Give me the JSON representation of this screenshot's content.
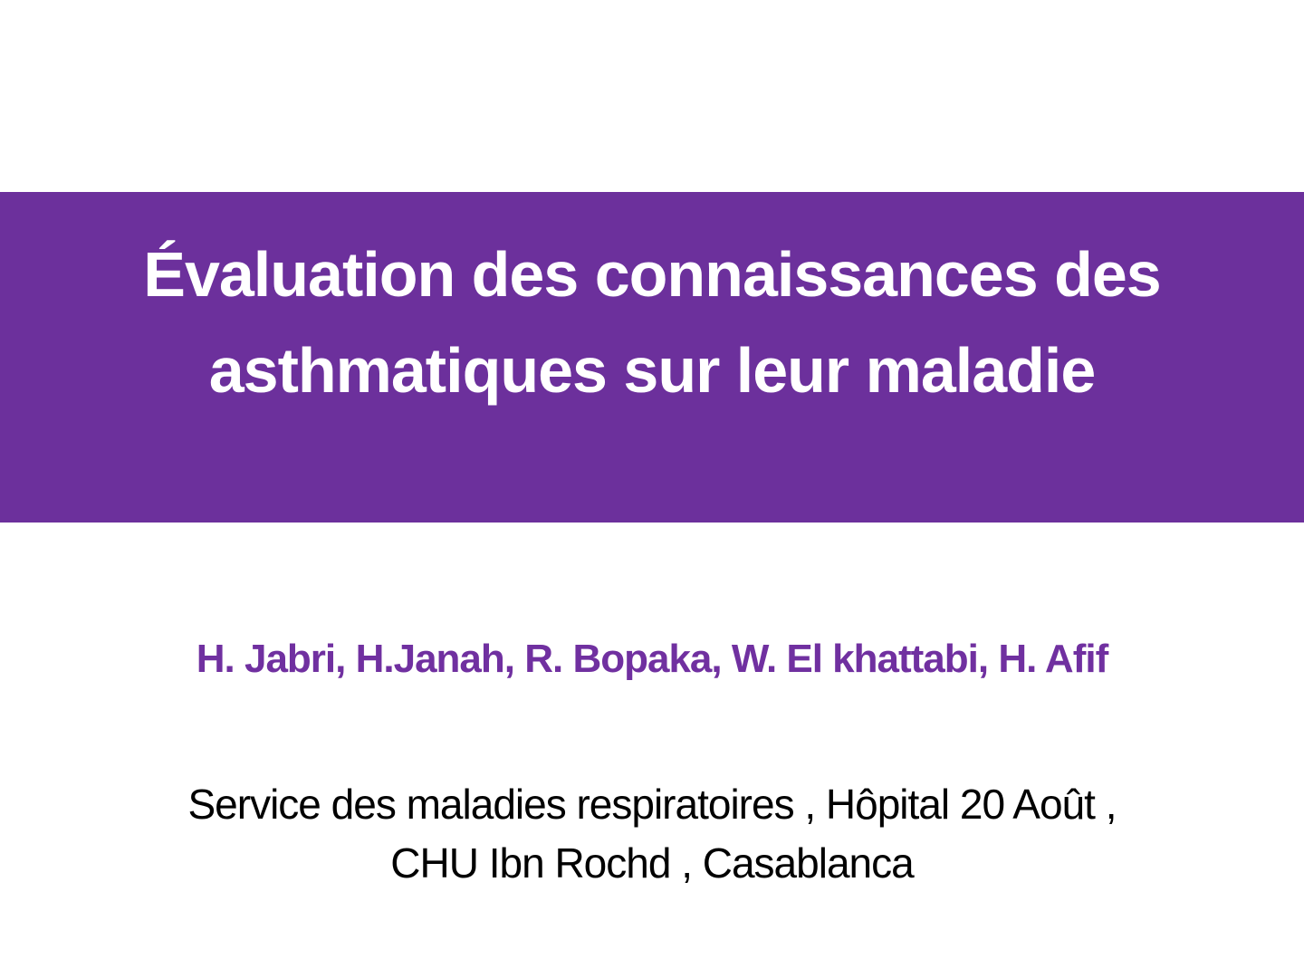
{
  "slide": {
    "title": {
      "line1": "Évaluation des connaissances des",
      "line2": "asthmatiques sur leur maladie"
    },
    "authors": "H. Jabri, H.Janah, R. Bopaka, W. El khattabi, H. Afif",
    "affiliation": {
      "line1": "Service des maladies respiratoires , Hôpital 20 Août ,",
      "line2": "CHU Ibn Rochd , Casablanca"
    },
    "colors": {
      "banner_background": "#6C309C",
      "title_text": "#FFFFFF",
      "authors_text": "#7030A0",
      "affiliation_text": "#000000",
      "slide_background": "#FFFFFF"
    }
  }
}
